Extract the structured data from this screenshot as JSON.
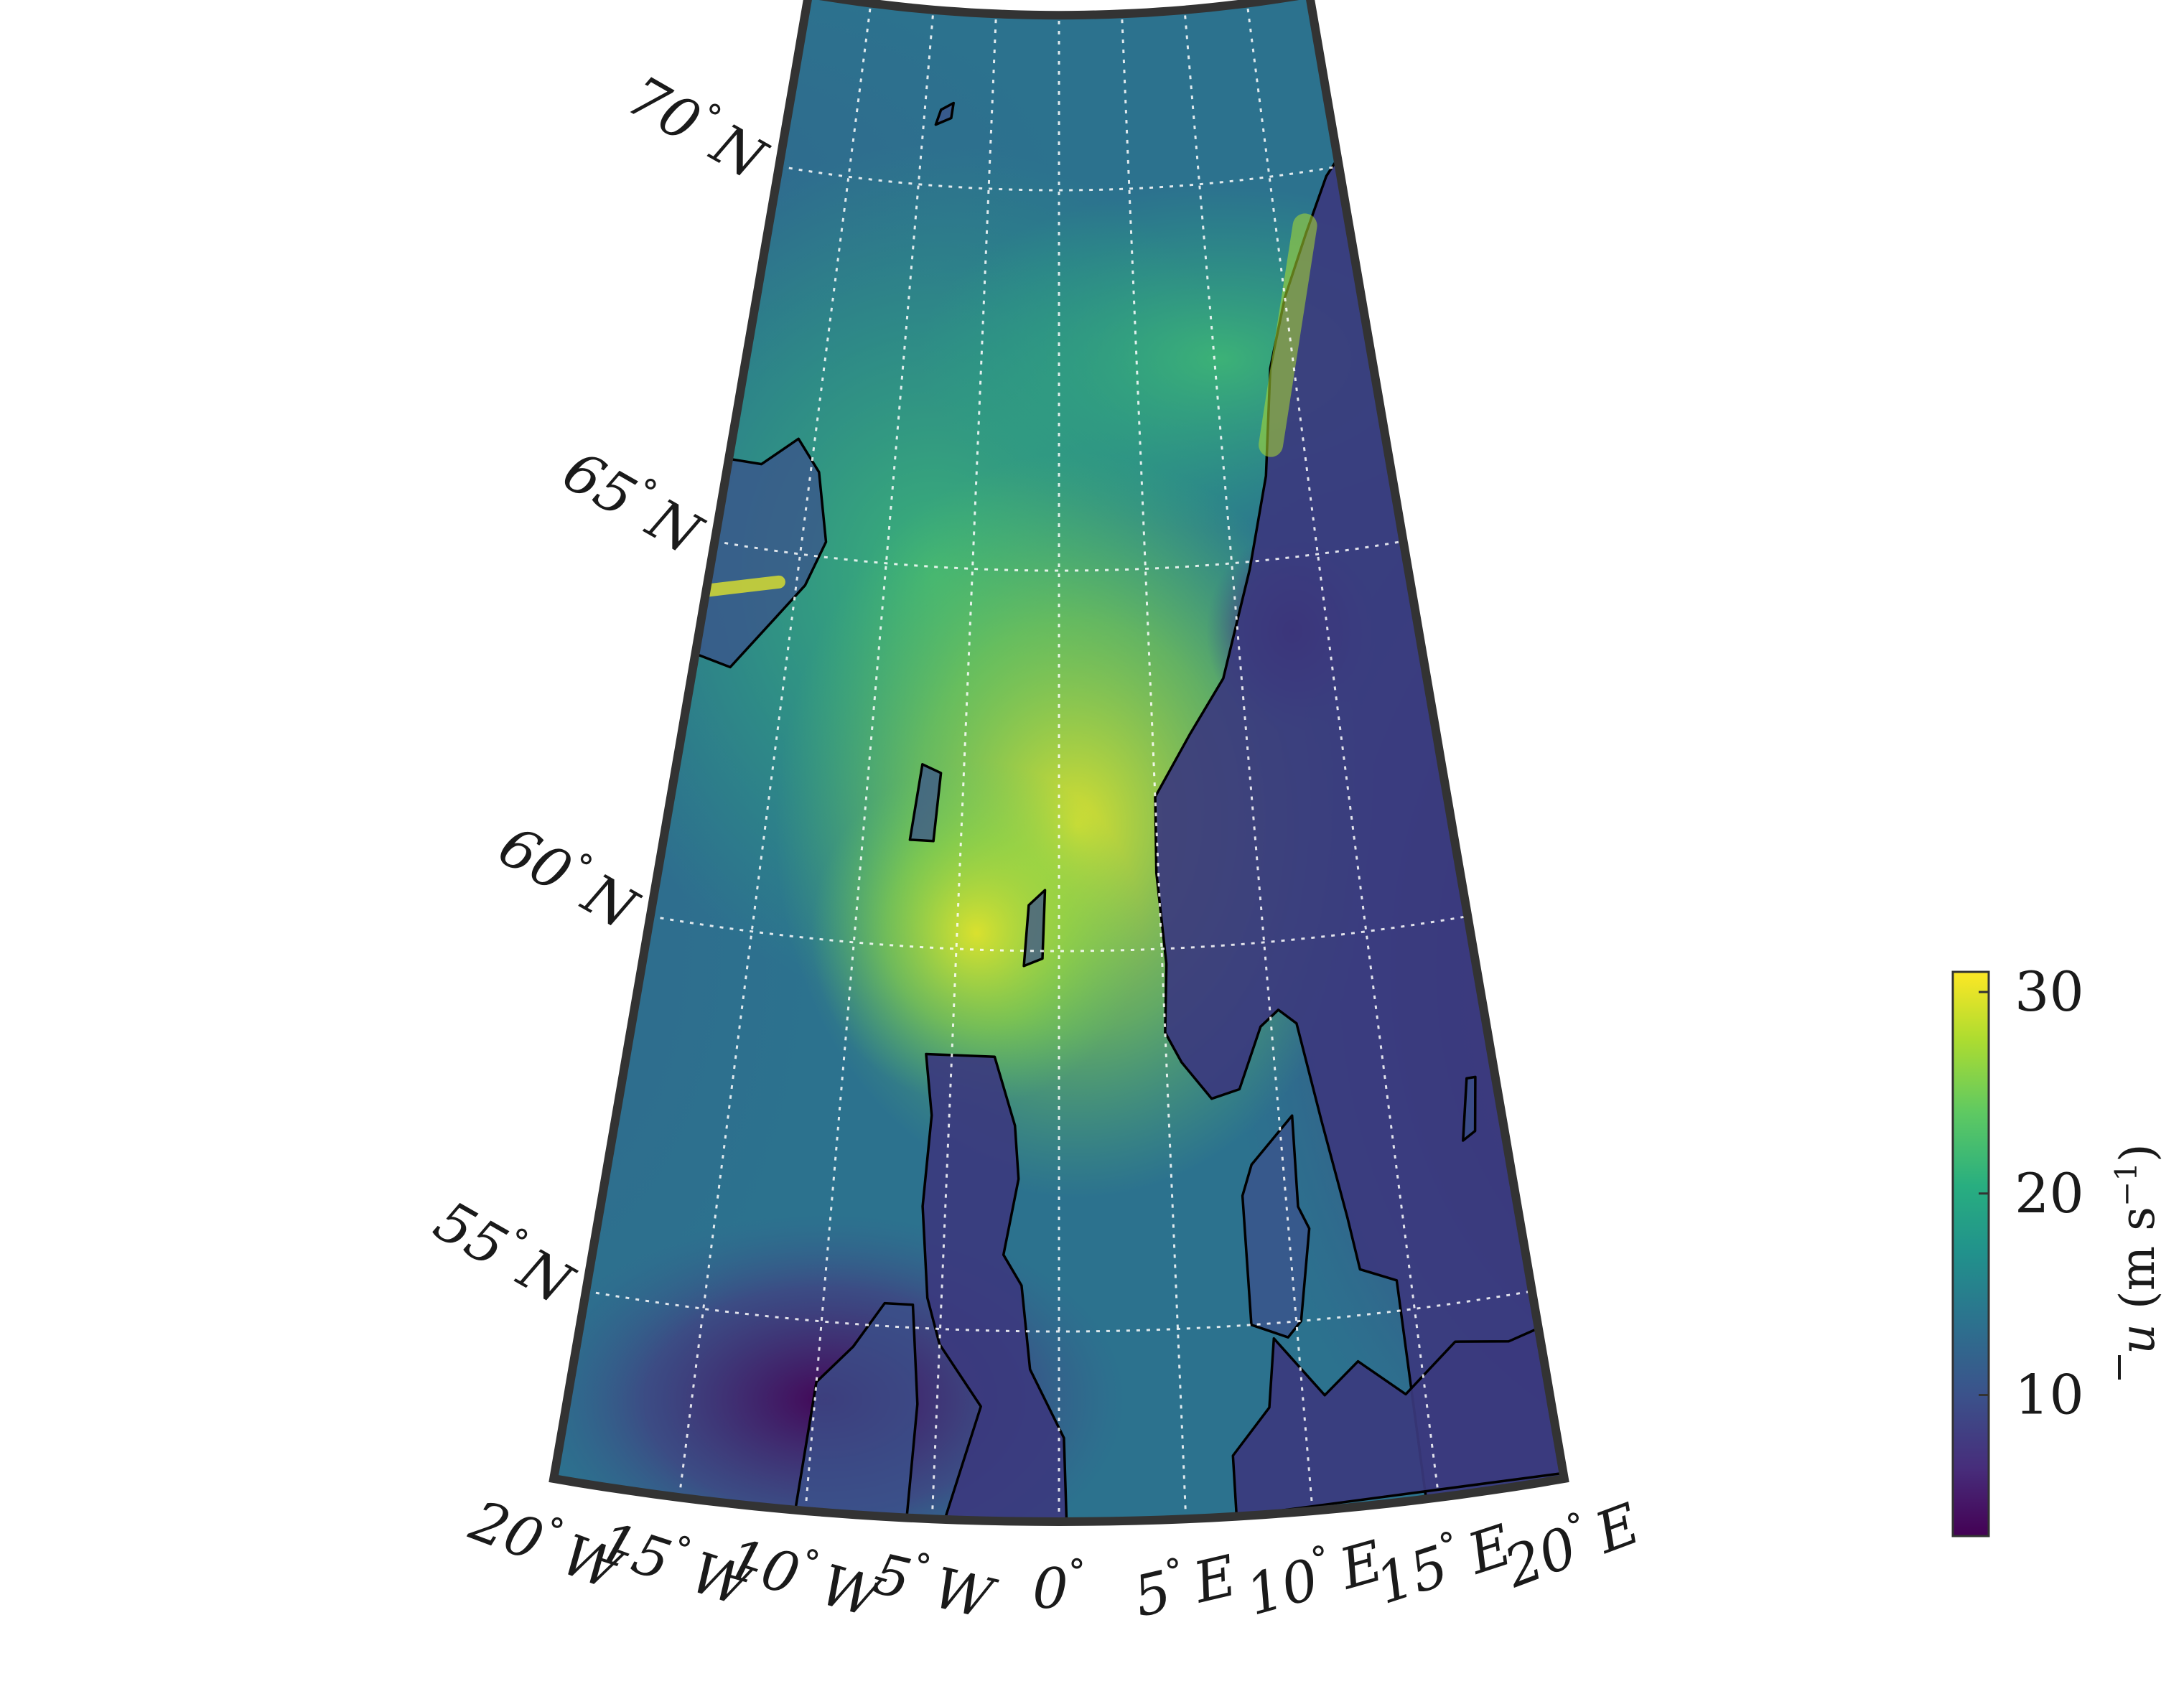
{
  "map": {
    "projection": "conic",
    "latitude_labels": [
      {
        "lat": 70,
        "deg": "70",
        "hemi": "N"
      },
      {
        "lat": 65,
        "deg": "65",
        "hemi": "N"
      },
      {
        "lat": 60,
        "deg": "60",
        "hemi": "N"
      },
      {
        "lat": 55,
        "deg": "55",
        "hemi": "N"
      }
    ],
    "longitude_labels": [
      {
        "lon": -20,
        "deg": "20",
        "hemi": "W"
      },
      {
        "lon": -15,
        "deg": "15",
        "hemi": "W"
      },
      {
        "lon": -10,
        "deg": "10",
        "hemi": "W"
      },
      {
        "lon": -5,
        "deg": "5",
        "hemi": "W"
      },
      {
        "lon": 0,
        "deg": "0",
        "hemi": ""
      },
      {
        "lon": 5,
        "deg": "5",
        "hemi": "E"
      },
      {
        "lon": 10,
        "deg": "10",
        "hemi": "E"
      },
      {
        "lon": 15,
        "deg": "15",
        "hemi": "E"
      },
      {
        "lon": 20,
        "deg": "20",
        "hemi": "E"
      }
    ],
    "gridlines": "dotted-white",
    "coastline_color": "#000000",
    "regions_shown": [
      "Iceland",
      "Faroe Islands",
      "Shetland",
      "Scotland",
      "Ireland",
      "Northern England",
      "Norway",
      "Sweden",
      "Denmark",
      "Jan Mayen"
    ]
  },
  "colorbar": {
    "colormap": "viridis",
    "ticks": [
      "10",
      "20",
      "30"
    ],
    "range": [
      3,
      31
    ],
    "label_symbol": "u",
    "label_unit": "(m s",
    "label_exp": "−1",
    "label_close": ")"
  },
  "colors": {
    "viridis_low": "#440154",
    "viridis_mid": "#21918c",
    "viridis_high": "#fde725",
    "frame": "#333333"
  }
}
